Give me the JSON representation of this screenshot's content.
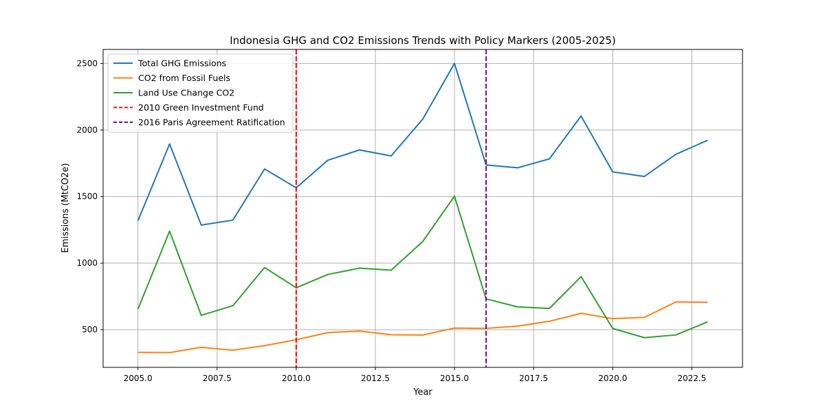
{
  "chart_data": {
    "type": "line",
    "title": "Indonesia GHG and CO2 Emissions Trends with Policy Markers (2005-2025)",
    "xlabel": "Year",
    "ylabel": "Emissions (MtCO2e)",
    "xlim": [
      2003.9,
      2024.1
    ],
    "ylim": [
      217,
      2605
    ],
    "xticks": [
      2005.0,
      2007.5,
      2010.0,
      2012.5,
      2015.0,
      2017.5,
      2020.0,
      2022.5
    ],
    "xtick_labels": [
      "2005.0",
      "2007.5",
      "2010.0",
      "2012.5",
      "2015.0",
      "2017.5",
      "2020.0",
      "2022.5"
    ],
    "yticks": [
      500,
      1000,
      1500,
      2000,
      2500
    ],
    "ytick_labels": [
      "500",
      "1000",
      "1500",
      "2000",
      "2500"
    ],
    "grid": true,
    "legend_position": "top-left",
    "x": [
      2005,
      2006,
      2007,
      2008,
      2009,
      2010,
      2011,
      2012,
      2013,
      2014,
      2015,
      2016,
      2017,
      2018,
      2019,
      2020,
      2021,
      2022,
      2023
    ],
    "series": [
      {
        "name": "Total GHG Emissions",
        "color": "#1f77b4",
        "values": [
          1318,
          1895,
          1286,
          1323,
          1707,
          1566,
          1773,
          1850,
          1805,
          2082,
          2500,
          1737,
          1716,
          1783,
          2105,
          1685,
          1651,
          1818,
          1923
        ]
      },
      {
        "name": "CO2 from Fossil Fuels",
        "color": "#ff7f0e",
        "values": [
          330,
          328,
          368,
          346,
          380,
          425,
          478,
          490,
          462,
          460,
          512,
          510,
          527,
          563,
          623,
          583,
          592,
          709,
          705
        ]
      },
      {
        "name": "Land Use Change CO2",
        "color": "#2ca02c",
        "values": [
          654,
          1240,
          608,
          680,
          967,
          815,
          915,
          962,
          947,
          1163,
          1503,
          731,
          671,
          660,
          899,
          509,
          440,
          461,
          559
        ]
      }
    ],
    "markers": [
      {
        "name": "2010 Green Investment Fund",
        "x": 2010,
        "color": "#ff0000",
        "style": "dashed"
      },
      {
        "name": "2016 Paris Agreement Ratification",
        "x": 2016,
        "color": "#800080",
        "style": "dashed"
      }
    ]
  }
}
